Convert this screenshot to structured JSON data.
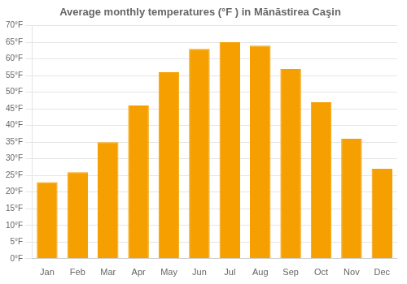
{
  "chart_data": {
    "type": "bar",
    "title": "Average monthly temperatures (°F ) in Mănăstirea Caşin",
    "categories": [
      "Jan",
      "Feb",
      "Mar",
      "Apr",
      "May",
      "Jun",
      "Jul",
      "Aug",
      "Sep",
      "Oct",
      "Nov",
      "Dec"
    ],
    "values": [
      23,
      26,
      35,
      46,
      56,
      63,
      65,
      64,
      57,
      47,
      36,
      27
    ],
    "color": "#F5A000",
    "ylim": [
      0,
      70
    ],
    "yticks": [
      {
        "value": 0,
        "label": "0°F"
      },
      {
        "value": 5,
        "label": "5°F"
      },
      {
        "value": 10,
        "label": "10°F"
      },
      {
        "value": 15,
        "label": "15°F"
      },
      {
        "value": 20,
        "label": "20°F"
      },
      {
        "value": 25,
        "label": "25°F"
      },
      {
        "value": 30,
        "label": "30°F"
      },
      {
        "value": 35,
        "label": "35°F"
      },
      {
        "value": 40,
        "label": "40°F"
      },
      {
        "value": 45,
        "label": "45°F"
      },
      {
        "value": 50,
        "label": "50°F"
      },
      {
        "value": 55,
        "label": "55°F"
      },
      {
        "value": 60,
        "label": "60°F"
      },
      {
        "value": 65,
        "label": "65°F"
      },
      {
        "value": 70,
        "label": "70°F"
      }
    ],
    "grid": true
  }
}
